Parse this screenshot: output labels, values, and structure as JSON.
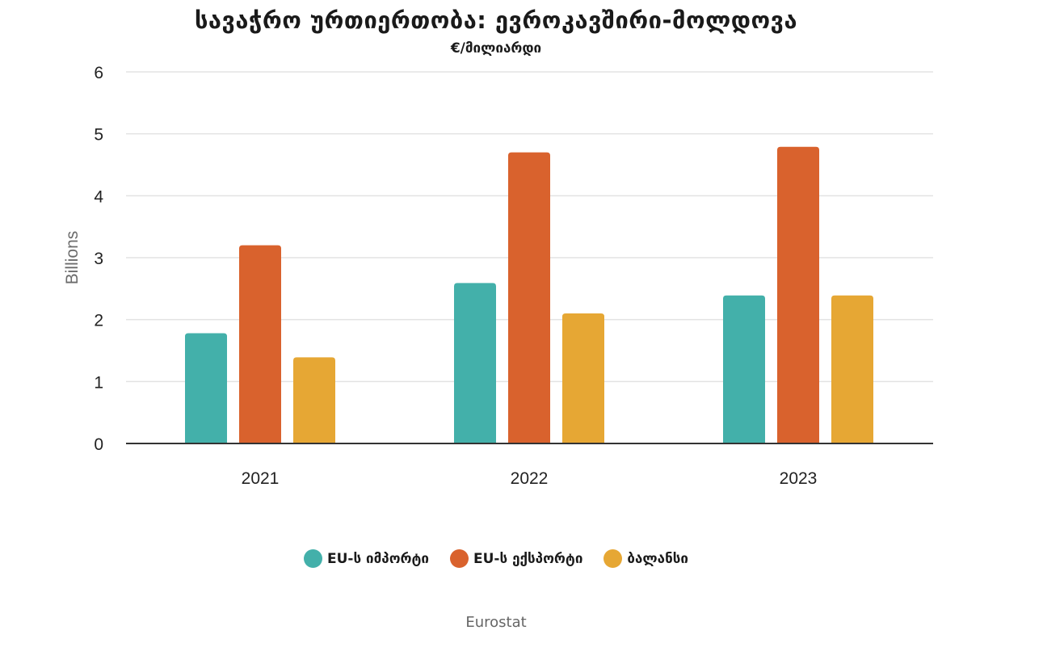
{
  "chart_data": {
    "type": "bar",
    "title": "სავაჭრო ურთიერთობა: ევროკავშირი-მოლდოვა",
    "subtitle": "€/მილიარდი",
    "ylabel": "Billions",
    "xlabel": "",
    "categories": [
      "2021",
      "2022",
      "2023"
    ],
    "yticks": [
      "0",
      "1",
      "2",
      "3",
      "4",
      "5",
      "6"
    ],
    "ylim": [
      0,
      6
    ],
    "grid": true,
    "legend_position": "bottom",
    "series": [
      {
        "name": "EU-ს იმპორტი",
        "color": "#43b0aa",
        "values": [
          1.78,
          2.59,
          2.39
        ]
      },
      {
        "name": "EU-ს ექსპორტი",
        "color": "#d9622d",
        "values": [
          3.2,
          4.7,
          4.79
        ]
      },
      {
        "name": "ბალანსი",
        "color": "#e6a734",
        "values": [
          1.39,
          2.1,
          2.39
        ]
      }
    ]
  },
  "source": "Eurostat"
}
